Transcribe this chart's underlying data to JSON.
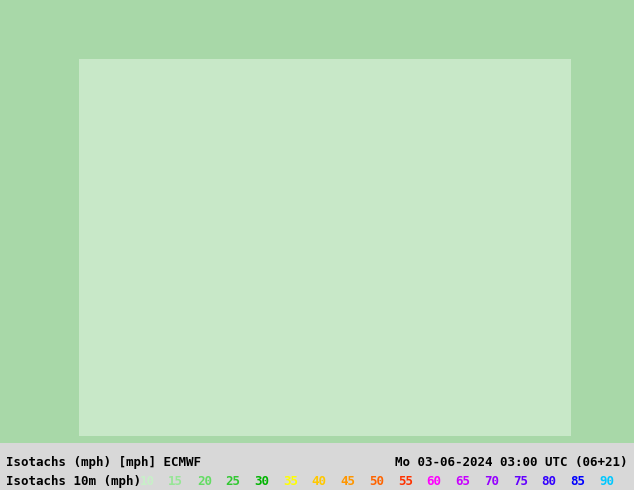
{
  "title_left": "Isotachs (mph) [mph] ECMWF",
  "title_right": "Mo 03-06-2024 03:00 UTC (06+21)",
  "legend_label": "Isotachs 10m (mph)",
  "legend_values": [
    10,
    15,
    20,
    25,
    30,
    35,
    40,
    45,
    50,
    55,
    60,
    65,
    70,
    75,
    80,
    85,
    90
  ],
  "legend_colors": [
    "#c8f0c8",
    "#96e696",
    "#64dc64",
    "#32c832",
    "#00b400",
    "#ffff00",
    "#ffc800",
    "#ff9600",
    "#ff6400",
    "#ff3200",
    "#ff00ff",
    "#c800ff",
    "#9600ff",
    "#6400ff",
    "#3200ff",
    "#0000ff",
    "#00c8ff"
  ],
  "bg_color": "#a8d8a8",
  "map_bg": "#c8e8c8",
  "bottom_bar_color": "#e8e8e8",
  "text_color": "#000000",
  "font_size_labels": 9,
  "font_size_title": 9
}
